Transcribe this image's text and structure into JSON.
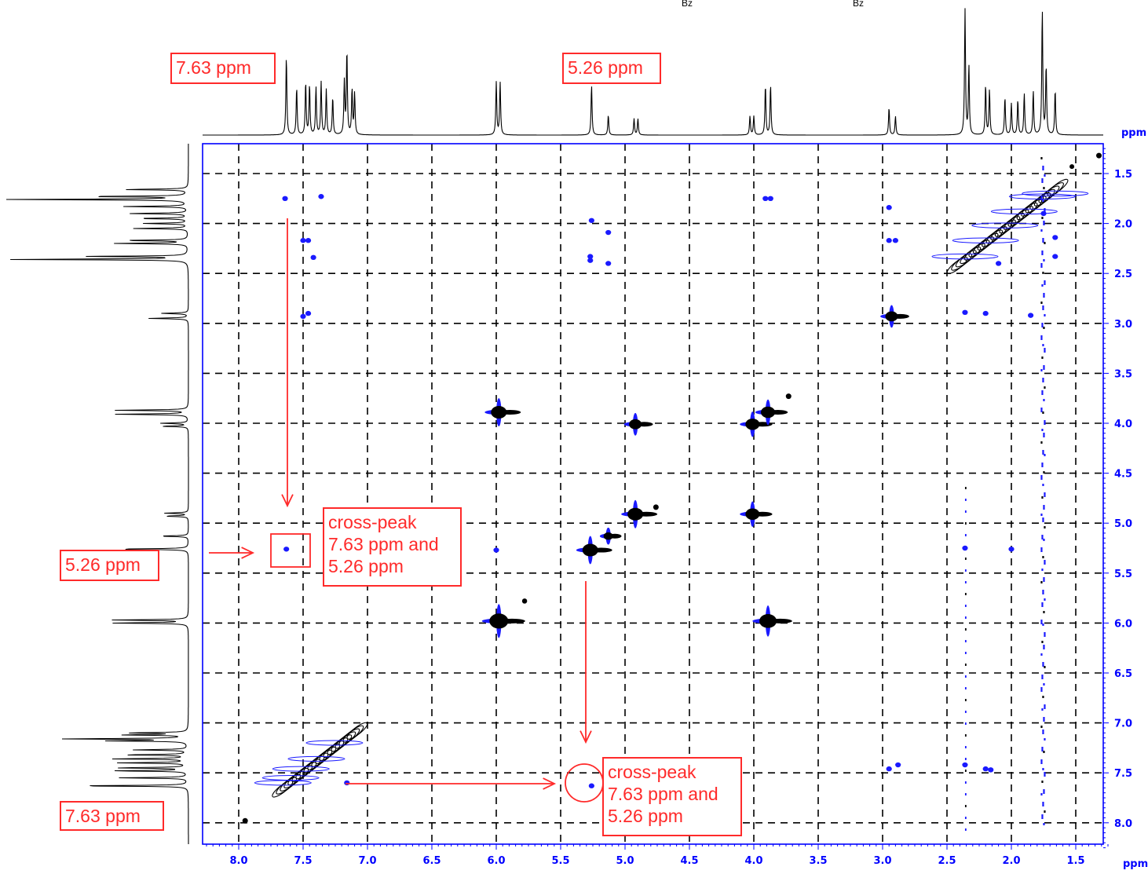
{
  "chart_data": {
    "type": "heatmap",
    "subtype": "2D NMR COSY contour plot with 1D projections",
    "x_axis": {
      "unit_label": "ppm",
      "range": [
        8.3,
        1.25
      ],
      "ticks": [
        "8.0",
        "7.5",
        "7.0",
        "6.5",
        "6.0",
        "5.5",
        "5.0",
        "4.5",
        "4.0",
        "3.5",
        "3.0",
        "2.5",
        "2.0",
        "1.5"
      ],
      "tick_values": [
        8.0,
        7.5,
        7.0,
        6.5,
        6.0,
        5.5,
        5.0,
        4.5,
        4.0,
        3.5,
        3.0,
        2.5,
        2.0,
        1.5
      ]
    },
    "y_axis": {
      "unit_label": "ppm",
      "range": [
        1.25,
        8.25
      ],
      "ticks": [
        "1.5",
        "2.0",
        "2.5",
        "3.0",
        "3.5",
        "4.0",
        "4.5",
        "5.0",
        "5.5",
        "6.0",
        "6.5",
        "7.0",
        "7.5",
        "8.0"
      ],
      "tick_values": [
        1.5,
        2.0,
        2.5,
        3.0,
        3.5,
        4.0,
        4.5,
        5.0,
        5.5,
        6.0,
        6.5,
        7.0,
        7.5,
        8.0
      ]
    },
    "grid": true,
    "top_spectrum_peaks": [
      {
        "ppm": 7.63,
        "h": 0.63
      },
      {
        "ppm": 7.55,
        "h": 0.38
      },
      {
        "ppm": 7.48,
        "h": 0.42
      },
      {
        "ppm": 7.45,
        "h": 0.4
      },
      {
        "ppm": 7.4,
        "h": 0.38
      },
      {
        "ppm": 7.36,
        "h": 0.42
      },
      {
        "ppm": 7.32,
        "h": 0.36
      },
      {
        "ppm": 7.27,
        "h": 0.3
      },
      {
        "ppm": 7.18,
        "h": 0.42
      },
      {
        "ppm": 7.16,
        "h": 0.67
      },
      {
        "ppm": 7.12,
        "h": 0.36
      },
      {
        "ppm": 7.1,
        "h": 0.33
      },
      {
        "ppm": 6.0,
        "h": 0.42
      },
      {
        "ppm": 5.97,
        "h": 0.42
      },
      {
        "ppm": 5.26,
        "h": 0.4
      },
      {
        "ppm": 5.13,
        "h": 0.16
      },
      {
        "ppm": 4.93,
        "h": 0.13
      },
      {
        "ppm": 4.9,
        "h": 0.13
      },
      {
        "ppm": 4.03,
        "h": 0.15
      },
      {
        "ppm": 4.0,
        "h": 0.15
      },
      {
        "ppm": 3.91,
        "h": 0.4
      },
      {
        "ppm": 3.87,
        "h": 0.4
      },
      {
        "ppm": 2.95,
        "h": 0.22
      },
      {
        "ppm": 2.9,
        "h": 0.15
      },
      {
        "ppm": 2.36,
        "h": 1.0
      },
      {
        "ppm": 2.33,
        "h": 0.55
      },
      {
        "ppm": 2.2,
        "h": 0.4
      },
      {
        "ppm": 2.17,
        "h": 0.36
      },
      {
        "ppm": 2.05,
        "h": 0.3
      },
      {
        "ppm": 2.0,
        "h": 0.25
      },
      {
        "ppm": 1.95,
        "h": 0.28
      },
      {
        "ppm": 1.9,
        "h": 0.33
      },
      {
        "ppm": 1.83,
        "h": 0.35
      },
      {
        "ppm": 1.76,
        "h": 1.0
      },
      {
        "ppm": 1.73,
        "h": 0.55
      },
      {
        "ppm": 1.66,
        "h": 0.36
      }
    ],
    "cross_peaks_black": [
      {
        "x": 5.98,
        "y": 3.89,
        "s": 1.0
      },
      {
        "x": 5.98,
        "y": 5.98,
        "s": 1.2
      },
      {
        "x": 4.92,
        "y": 4.01,
        "s": 0.8
      },
      {
        "x": 4.92,
        "y": 4.91,
        "s": 1.0
      },
      {
        "x": 4.01,
        "y": 4.01,
        "s": 0.9
      },
      {
        "x": 4.01,
        "y": 4.91,
        "s": 0.9
      },
      {
        "x": 3.89,
        "y": 3.89,
        "s": 0.9
      },
      {
        "x": 3.89,
        "y": 5.98,
        "s": 1.1
      },
      {
        "x": 5.27,
        "y": 5.27,
        "s": 1.0
      },
      {
        "x": 5.13,
        "y": 5.13,
        "s": 0.6
      },
      {
        "x": 2.93,
        "y": 2.93,
        "s": 0.8
      },
      {
        "x": 3.73,
        "y": 3.73,
        "s": 0.3
      },
      {
        "x": 4.76,
        "y": 4.84,
        "s": 0.3
      },
      {
        "x": 5.78,
        "y": 5.78,
        "s": 0.25
      },
      {
        "x": 7.95,
        "y": 7.98,
        "s": 0.3
      },
      {
        "x": 1.32,
        "y": 1.32,
        "s": 0.3
      },
      {
        "x": 1.53,
        "y": 1.43,
        "s": 0.2
      }
    ],
    "cross_peaks_blue": [
      {
        "x": 7.63,
        "y": 5.26
      },
      {
        "x": 5.26,
        "y": 7.63
      },
      {
        "x": 7.64,
        "y": 1.75
      },
      {
        "x": 7.36,
        "y": 1.73
      },
      {
        "x": 7.5,
        "y": 2.17
      },
      {
        "x": 7.46,
        "y": 2.17
      },
      {
        "x": 7.42,
        "y": 2.34
      },
      {
        "x": 7.5,
        "y": 2.93
      },
      {
        "x": 7.46,
        "y": 2.9
      },
      {
        "x": 5.26,
        "y": 1.97
      },
      {
        "x": 5.13,
        "y": 2.09
      },
      {
        "x": 5.27,
        "y": 2.33
      },
      {
        "x": 5.27,
        "y": 2.37
      },
      {
        "x": 5.13,
        "y": 2.4
      },
      {
        "x": 3.91,
        "y": 1.75
      },
      {
        "x": 3.87,
        "y": 1.75
      },
      {
        "x": 2.95,
        "y": 1.84
      },
      {
        "x": 2.95,
        "y": 2.17
      },
      {
        "x": 2.9,
        "y": 2.17
      },
      {
        "x": 2.95,
        "y": 7.46
      },
      {
        "x": 2.88,
        "y": 7.42
      },
      {
        "x": 2.36,
        "y": 7.42
      },
      {
        "x": 2.2,
        "y": 7.46
      },
      {
        "x": 2.16,
        "y": 7.47
      },
      {
        "x": 2.36,
        "y": 5.25
      },
      {
        "x": 2.0,
        "y": 5.26
      },
      {
        "x": 2.36,
        "y": 2.89
      },
      {
        "x": 2.2,
        "y": 2.9
      },
      {
        "x": 1.85,
        "y": 2.92
      },
      {
        "x": 2.1,
        "y": 2.4
      },
      {
        "x": 1.75,
        "y": 1.9
      },
      {
        "x": 1.66,
        "y": 2.14
      },
      {
        "x": 1.66,
        "y": 2.33
      },
      {
        "x": 6.0,
        "y": 5.27
      },
      {
        "x": 7.16,
        "y": 7.6
      }
    ],
    "annotations": {
      "top_left_label": "7.63 ppm",
      "top_mid_label": "5.26 ppm",
      "left_mid_label": "5.26 ppm",
      "left_bottom_label": "7.63 ppm",
      "crosspeak_label_1": [
        "cross-peak",
        "7.63 ppm and",
        "5.26 ppm"
      ],
      "crosspeak_label_2": [
        "cross-peak",
        "7.63 ppm and",
        "5.26 ppm"
      ]
    },
    "top_caption": [
      "Bz",
      "Bz"
    ],
    "colors": {
      "positive": "#000000",
      "negative": "#1a1aff",
      "axis": "#0000ff",
      "annotation": "#ff2a2a"
    }
  }
}
